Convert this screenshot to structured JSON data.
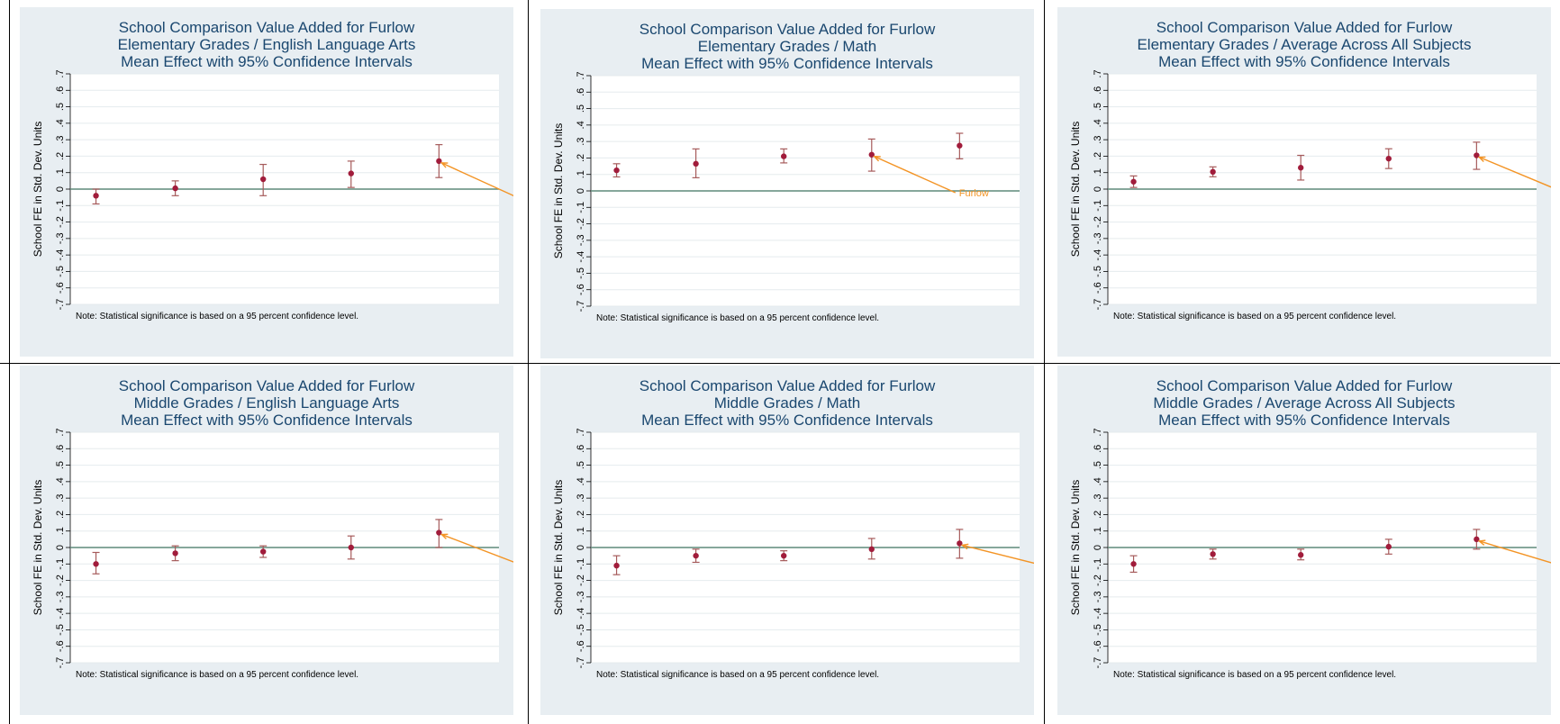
{
  "common": {
    "ylabel": "School FE in Std. Dev. Units",
    "yticks": [
      -0.7,
      -0.6,
      -0.5,
      -0.4,
      -0.3,
      -0.2,
      -0.1,
      0,
      0.1,
      0.2,
      0.3,
      0.4,
      0.5,
      0.6,
      0.7
    ],
    "ytick_labels": [
      "-.7",
      "-.6",
      "-.5",
      "-.4",
      "-.3",
      "-.2",
      "-.1",
      "0",
      ".1",
      ".2",
      ".3",
      ".4",
      ".5",
      ".6",
      ".7"
    ],
    "note": "Note: Statistical significance is based on a 95 percent confidence level.",
    "annotation": "Furlow",
    "colors": {
      "background": "#e8eef2",
      "plot": "#ffffff",
      "point": "#a11c3b",
      "ci": "#a65b5b",
      "zero_line": "#5e8a7a",
      "arrow": "#f39425",
      "title": "#1a476f",
      "grid": "#e5ebee"
    }
  },
  "chart_data": [
    {
      "type": "scatter",
      "title": [
        "School Comparison Value Added for Furlow",
        "Elementary Grades / English Language Arts",
        "Mean Effect with 95% Confidence Intervals"
      ],
      "ylim": [
        -0.7,
        0.7
      ],
      "grid": true,
      "points": [
        {
          "y": -0.04,
          "lo": -0.09,
          "hi": 0.0
        },
        {
          "y": 0.005,
          "lo": -0.04,
          "hi": 0.05
        },
        {
          "y": 0.06,
          "lo": -0.04,
          "hi": 0.15
        },
        {
          "y": 0.095,
          "lo": 0.01,
          "hi": 0.17
        },
        {
          "y": 0.17,
          "lo": 0.07,
          "hi": 0.27
        }
      ],
      "highlight_index": 4
    },
    {
      "type": "scatter",
      "title": [
        "School Comparison Value Added for Furlow",
        "Elementary Grades / Math",
        "Mean Effect with 95% Confidence Intervals"
      ],
      "ylim": [
        -0.7,
        0.7
      ],
      "grid": true,
      "points": [
        {
          "y": 0.125,
          "lo": 0.085,
          "hi": 0.165
        },
        {
          "y": 0.165,
          "lo": 0.08,
          "hi": 0.255
        },
        {
          "y": 0.21,
          "lo": 0.17,
          "hi": 0.255
        },
        {
          "y": 0.22,
          "lo": 0.12,
          "hi": 0.315
        },
        {
          "y": 0.275,
          "lo": 0.195,
          "hi": 0.35
        }
      ],
      "highlight_index": 3
    },
    {
      "type": "scatter",
      "title": [
        "School Comparison Value Added for Furlow",
        "Elementary Grades / Average Across All Subjects",
        "Mean Effect with 95% Confidence Intervals"
      ],
      "ylim": [
        -0.7,
        0.7
      ],
      "grid": true,
      "points": [
        {
          "y": 0.045,
          "lo": 0.01,
          "hi": 0.08
        },
        {
          "y": 0.105,
          "lo": 0.075,
          "hi": 0.135
        },
        {
          "y": 0.13,
          "lo": 0.055,
          "hi": 0.205
        },
        {
          "y": 0.185,
          "lo": 0.125,
          "hi": 0.245
        },
        {
          "y": 0.205,
          "lo": 0.12,
          "hi": 0.285
        }
      ],
      "highlight_index": 4
    },
    {
      "type": "scatter",
      "title": [
        "School Comparison Value Added for Furlow",
        "Middle Grades / English Language Arts",
        "Mean Effect with 95% Confidence Intervals"
      ],
      "ylim": [
        -0.7,
        0.7
      ],
      "grid": true,
      "points": [
        {
          "y": -0.1,
          "lo": -0.16,
          "hi": -0.03
        },
        {
          "y": -0.035,
          "lo": -0.08,
          "hi": 0.01
        },
        {
          "y": -0.025,
          "lo": -0.06,
          "hi": 0.01
        },
        {
          "y": 0.0,
          "lo": -0.07,
          "hi": 0.07
        },
        {
          "y": 0.09,
          "lo": 0.0,
          "hi": 0.17
        }
      ],
      "highlight_index": 4
    },
    {
      "type": "scatter",
      "title": [
        "School Comparison Value Added for Furlow",
        "Middle Grades / Math",
        "Mean Effect with 95% Confidence Intervals"
      ],
      "ylim": [
        -0.7,
        0.7
      ],
      "grid": true,
      "points": [
        {
          "y": -0.11,
          "lo": -0.165,
          "hi": -0.05
        },
        {
          "y": -0.05,
          "lo": -0.09,
          "hi": -0.01
        },
        {
          "y": -0.05,
          "lo": -0.08,
          "hi": -0.02
        },
        {
          "y": -0.01,
          "lo": -0.07,
          "hi": 0.055
        },
        {
          "y": 0.025,
          "lo": -0.065,
          "hi": 0.11
        }
      ],
      "highlight_index": 4
    },
    {
      "type": "scatter",
      "title": [
        "School Comparison Value Added for Furlow",
        "Middle Grades / Average Across All Subjects",
        "Mean Effect with 95% Confidence Intervals"
      ],
      "ylim": [
        -0.7,
        0.7
      ],
      "grid": true,
      "points": [
        {
          "y": -0.1,
          "lo": -0.15,
          "hi": -0.05
        },
        {
          "y": -0.04,
          "lo": -0.07,
          "hi": -0.01
        },
        {
          "y": -0.045,
          "lo": -0.075,
          "hi": -0.01
        },
        {
          "y": 0.005,
          "lo": -0.04,
          "hi": 0.05
        },
        {
          "y": 0.05,
          "lo": -0.01,
          "hi": 0.11
        }
      ],
      "highlight_index": 4
    }
  ]
}
